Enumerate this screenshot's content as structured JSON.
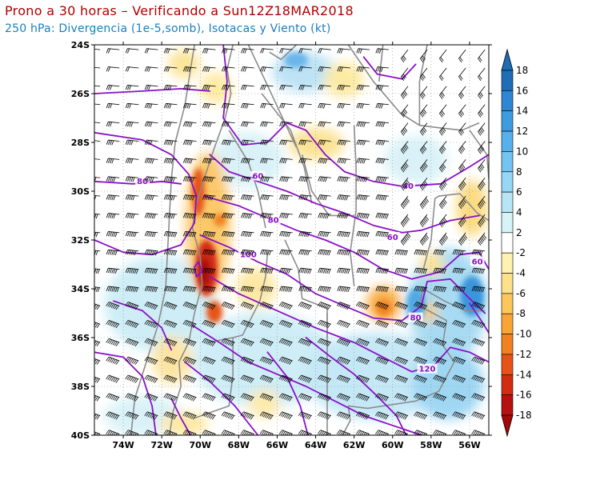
{
  "title": "Prono a 30 horas – Verificando a Sun12Z18MAR2018",
  "subtitle": "250 hPa: Divergencia (1e-5,somb), Isotacas y Viento (kt)",
  "map": {
    "lat_labels": [
      "24S",
      "26S",
      "28S",
      "30S",
      "32S",
      "34S",
      "36S",
      "38S",
      "40S"
    ],
    "lon_labels": [
      "74W",
      "72W",
      "70W",
      "68W",
      "66W",
      "64W",
      "62W",
      "60W",
      "58W",
      "56W"
    ],
    "isotach_labels": [
      {
        "text": "80",
        "lon": -73.0,
        "lat": -29.6
      },
      {
        "text": "60",
        "lon": -67.0,
        "lat": -29.4
      },
      {
        "text": "40",
        "lon": -59.2,
        "lat": -29.8
      },
      {
        "text": "80",
        "lon": -66.2,
        "lat": -31.2
      },
      {
        "text": "60",
        "lon": -60.0,
        "lat": -31.9
      },
      {
        "text": "100",
        "lon": -67.5,
        "lat": -32.6
      },
      {
        "text": "60",
        "lon": -55.6,
        "lat": -32.9
      },
      {
        "text": "80",
        "lon": -58.8,
        "lat": -35.2
      },
      {
        "text": "120",
        "lon": -58.2,
        "lat": -37.3
      }
    ],
    "colors": {
      "isotach": "#8a10c8",
      "border": "#8c8c8c",
      "barb": "#000000",
      "grid": "#888888"
    }
  },
  "colorbar": {
    "labels": [
      "18",
      "16",
      "14",
      "12",
      "10",
      "8",
      "6",
      "4",
      "2",
      "-2",
      "-4",
      "-6",
      "-8",
      "-10",
      "-12",
      "-14",
      "-16",
      "-18"
    ],
    "colors": [
      "#1e6db5",
      "#2f86d2",
      "#3d9be0",
      "#55b0eb",
      "#73c4f0",
      "#95d7f4",
      "#b6e6f6",
      "#d6f3f7",
      "#ffffff",
      "#fff2b0",
      "#fde08a",
      "#fbc65a",
      "#f8a535",
      "#f28122",
      "#e65318",
      "#d22c12",
      "#b5110e"
    ]
  }
}
